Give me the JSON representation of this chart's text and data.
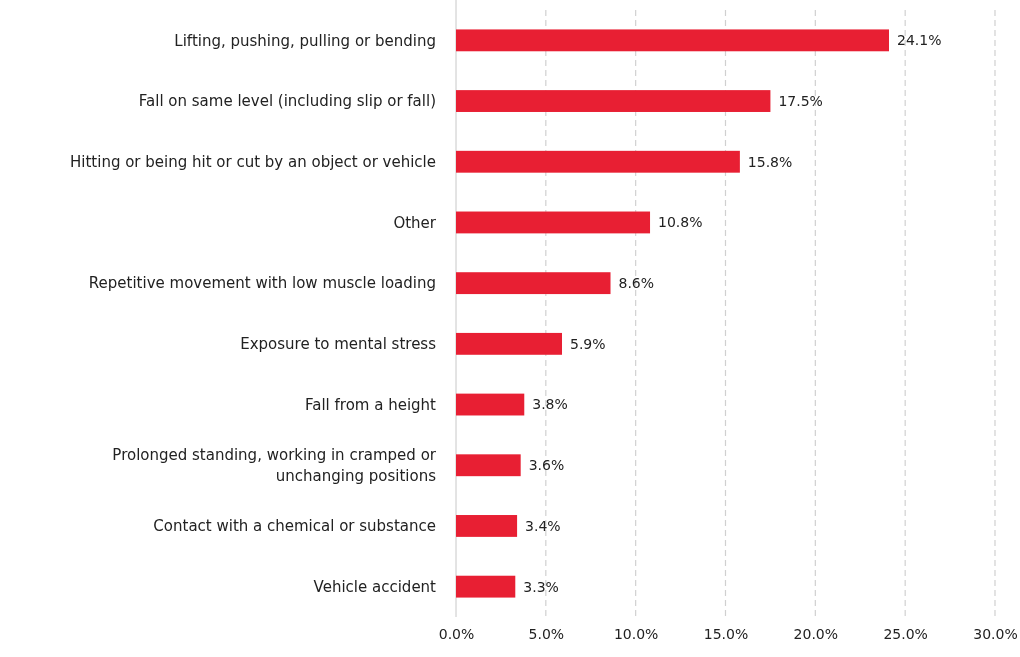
{
  "chart_data": {
    "type": "bar",
    "orientation": "horizontal",
    "categories": [
      "Lifting, pushing, pulling or bending",
      "Fall on same level (including slip or fall)",
      "Hitting or being hit or cut by an object or vehicle",
      "Other",
      "Repetitive movement with low muscle loading",
      "Exposure to mental stress",
      "Fall from a height",
      "Prolonged standing, working in cramped or unchanging positions",
      "Contact with a chemical or substance",
      "Vehicle accident"
    ],
    "values": [
      24.1,
      17.5,
      15.8,
      10.8,
      8.6,
      5.9,
      3.8,
      3.6,
      3.4,
      3.3
    ],
    "value_labels": [
      "24.1%",
      "17.5%",
      "15.8%",
      "10.8%",
      "8.6%",
      "5.9%",
      "3.8%",
      "3.6%",
      "3.4%",
      "3.3%"
    ],
    "color": "#e81f33",
    "xlim": [
      0,
      30
    ],
    "xticks": [
      {
        "value": 0,
        "label": "0.0%"
      },
      {
        "value": 5,
        "label": "5.0%"
      },
      {
        "value": 10,
        "label": "10.0%"
      },
      {
        "value": 15,
        "label": "15.0%"
      },
      {
        "value": 20,
        "label": "20.0%"
      },
      {
        "value": 25,
        "label": "25.0%"
      },
      {
        "value": 30,
        "label": "30.0%"
      }
    ],
    "grid": "x"
  }
}
